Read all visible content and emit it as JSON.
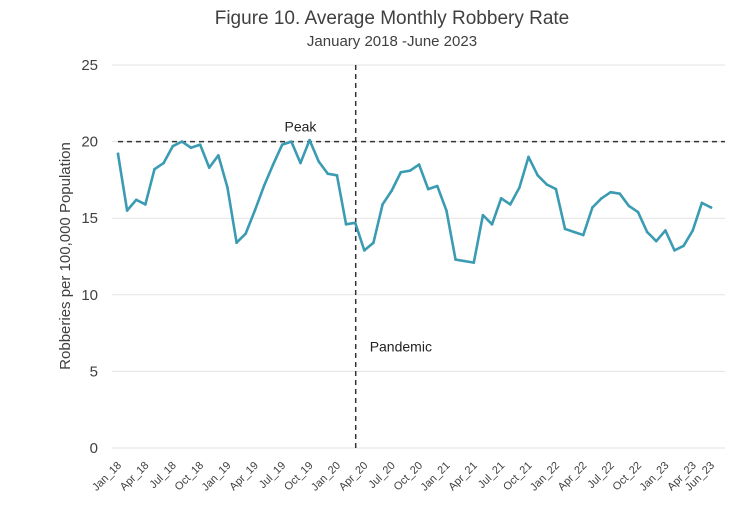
{
  "chart_data": {
    "type": "line",
    "title": "Figure 10. Average Monthly Robbery Rate",
    "subtitle": "January 2018 -June 2023",
    "ylabel": "Robberies per 100,000 Population",
    "xlabel": "",
    "ylim": [
      0,
      25
    ],
    "yticks": [
      "0",
      "5",
      "10",
      "15",
      "20",
      "25"
    ],
    "ytick_values": [
      0,
      5,
      10,
      15,
      20,
      25
    ],
    "grid": true,
    "xtick_labels": [
      "Jan_18",
      "Apr_18",
      "Jul_18",
      "Oct_18",
      "Jan_19",
      "Apr_19",
      "Jul_19",
      "Oct_19",
      "Jan_20",
      "Apr_20",
      "Jul_20",
      "Oct_20",
      "Jan_21",
      "Apr_21",
      "Jul_21",
      "Oct_21",
      "Jan_22",
      "Apr_22",
      "Jul_22",
      "Oct_22",
      "Jan_23",
      "Apr_23",
      "Jun_23"
    ],
    "xtick_indices": [
      0,
      3,
      6,
      9,
      12,
      15,
      18,
      21,
      24,
      27,
      30,
      33,
      36,
      39,
      42,
      45,
      48,
      51,
      54,
      57,
      60,
      63,
      65
    ],
    "series": [
      {
        "name": "Average Monthly Robbery Rate",
        "color": "#3a9bb3",
        "values": [
          19.2,
          15.5,
          16.2,
          15.9,
          18.2,
          18.6,
          19.7,
          20.0,
          19.6,
          19.8,
          18.3,
          19.1,
          17.0,
          13.4,
          14.0,
          15.5,
          17.1,
          18.5,
          19.8,
          20.0,
          18.6,
          20.1,
          18.7,
          17.9,
          17.8,
          14.6,
          14.7,
          12.9,
          13.4,
          15.9,
          16.8,
          18.0,
          18.1,
          18.5,
          16.9,
          17.1,
          15.5,
          12.3,
          12.2,
          12.1,
          15.2,
          14.6,
          16.3,
          15.9,
          17.0,
          19.0,
          17.8,
          17.2,
          16.9,
          14.3,
          14.1,
          13.9,
          15.7,
          16.3,
          16.7,
          16.6,
          15.8,
          15.4,
          14.1,
          13.5,
          14.2,
          12.9,
          13.2,
          14.2,
          16.0,
          15.7
        ]
      }
    ],
    "reference_lines": [
      {
        "type": "horizontal",
        "value": 20,
        "label": "Peak",
        "color": "#333333"
      },
      {
        "type": "vertical",
        "index": 26,
        "label": "Pandemic",
        "color": "#333333"
      }
    ]
  }
}
